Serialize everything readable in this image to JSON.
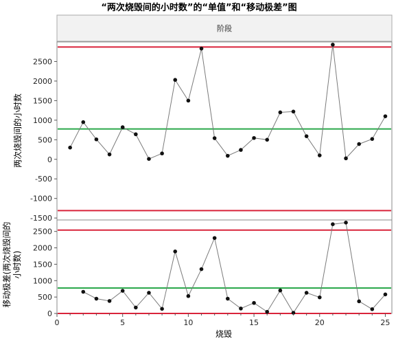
{
  "chart_data": {
    "title": "“两次烧毁间的小时数”的“单值”和“移动极差”图",
    "phase_label": "阶段",
    "xlabel": "烧毁",
    "x_ticks": [
      0,
      5,
      10,
      15,
      20,
      25
    ],
    "xlim": [
      0,
      25.5
    ],
    "panels": [
      {
        "type": "line",
        "name": "individual",
        "ylabel": "两次烧毁间的小时数",
        "ylim": [
          -1550,
          3000
        ],
        "y_ticks": [
          -1500,
          -1000,
          -500,
          0,
          500,
          1000,
          1500,
          2000,
          2500
        ],
        "x": [
          1,
          2,
          3,
          4,
          5,
          6,
          7,
          8,
          9,
          10,
          11,
          12,
          13,
          14,
          15,
          16,
          17,
          18,
          19,
          20,
          21,
          22,
          23,
          24,
          25
        ],
        "values": [
          300,
          950,
          510,
          125,
          820,
          640,
          10,
          150,
          2030,
          1500,
          2830,
          540,
          90,
          240,
          545,
          500,
          1200,
          1220,
          590,
          100,
          2930,
          25,
          390,
          520,
          1100
        ],
        "center_line": 775,
        "ucl": 2870,
        "lcl": -1310,
        "colors": {
          "center": "#2aa84a",
          "limits": "#d9233a",
          "line": "#7a7a7a",
          "point": "#111111"
        }
      },
      {
        "type": "line",
        "name": "moving-range",
        "ylabel": "移动极差(两次烧毁间的小时数)",
        "ylim": [
          0,
          2850
        ],
        "y_ticks": [
          0,
          500,
          1000,
          1500,
          2000,
          2500
        ],
        "x": [
          2,
          3,
          4,
          5,
          6,
          7,
          8,
          9,
          10,
          11,
          12,
          13,
          14,
          15,
          16,
          17,
          18,
          19,
          20,
          21,
          22,
          23,
          24,
          25
        ],
        "values": [
          660,
          450,
          380,
          690,
          180,
          630,
          140,
          1890,
          530,
          1350,
          2300,
          450,
          150,
          320,
          50,
          700,
          20,
          630,
          490,
          2720,
          2770,
          370,
          130,
          580
        ],
        "center_line": 775,
        "ucl": 2540,
        "lcl": 0,
        "colors": {
          "center": "#2aa84a",
          "limits": "#d9233a",
          "line": "#7a7a7a",
          "point": "#111111"
        }
      }
    ]
  }
}
